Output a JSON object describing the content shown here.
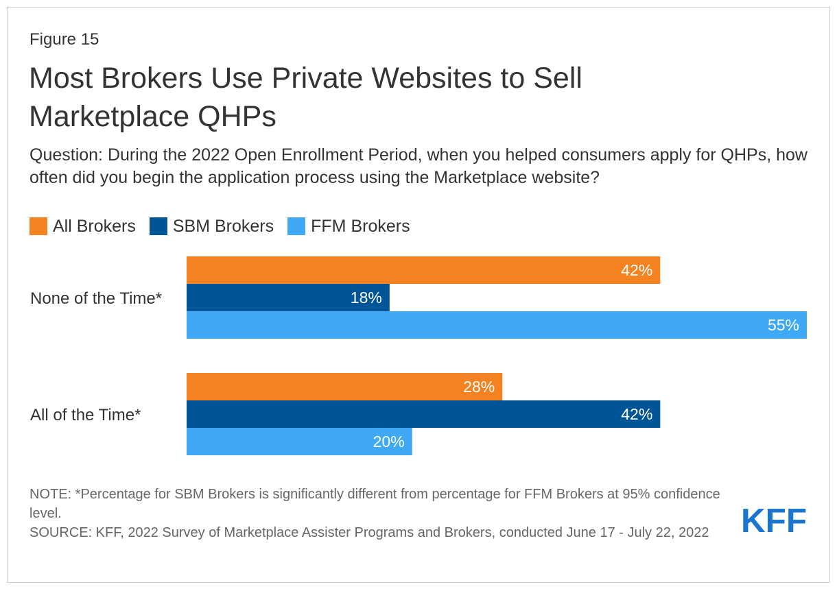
{
  "figure_label": "Figure 15",
  "title": "Most Brokers Use Private Websites to Sell Marketplace QHPs",
  "subtitle": "Question: During the 2022 Open Enrollment Period, when you helped consumers apply for QHPs, how often did you begin the application process using the Marketplace website?",
  "note": "NOTE: *Percentage for SBM Brokers is significantly different from percentage for FFM Brokers at 95% confidence level.",
  "source": "SOURCE: KFF, 2022 Survey of Marketplace Assister Programs and Brokers, conducted June 17 - July 22, 2022",
  "logo_text": "KFF",
  "colors": {
    "all": "#f58220",
    "sbm": "#005596",
    "ffm": "#3fa9f5",
    "logo": "#1a75cf"
  },
  "chart_data": {
    "type": "bar",
    "orientation": "horizontal",
    "categories": [
      "None of the Time*",
      "All of the Time*"
    ],
    "series": [
      {
        "name": "All Brokers",
        "values": [
          42,
          28
        ],
        "labels": [
          "42%",
          "28%"
        ],
        "color": "#f58220"
      },
      {
        "name": "SBM Brokers",
        "values": [
          18,
          42
        ],
        "labels": [
          "18%",
          "42%"
        ],
        "color": "#005596"
      },
      {
        "name": "FFM Brokers",
        "values": [
          55,
          20
        ],
        "labels": [
          "55%",
          "20%"
        ],
        "color": "#3fa9f5"
      }
    ],
    "xlim": [
      0,
      55
    ],
    "grid": false,
    "legend": "top-left"
  }
}
